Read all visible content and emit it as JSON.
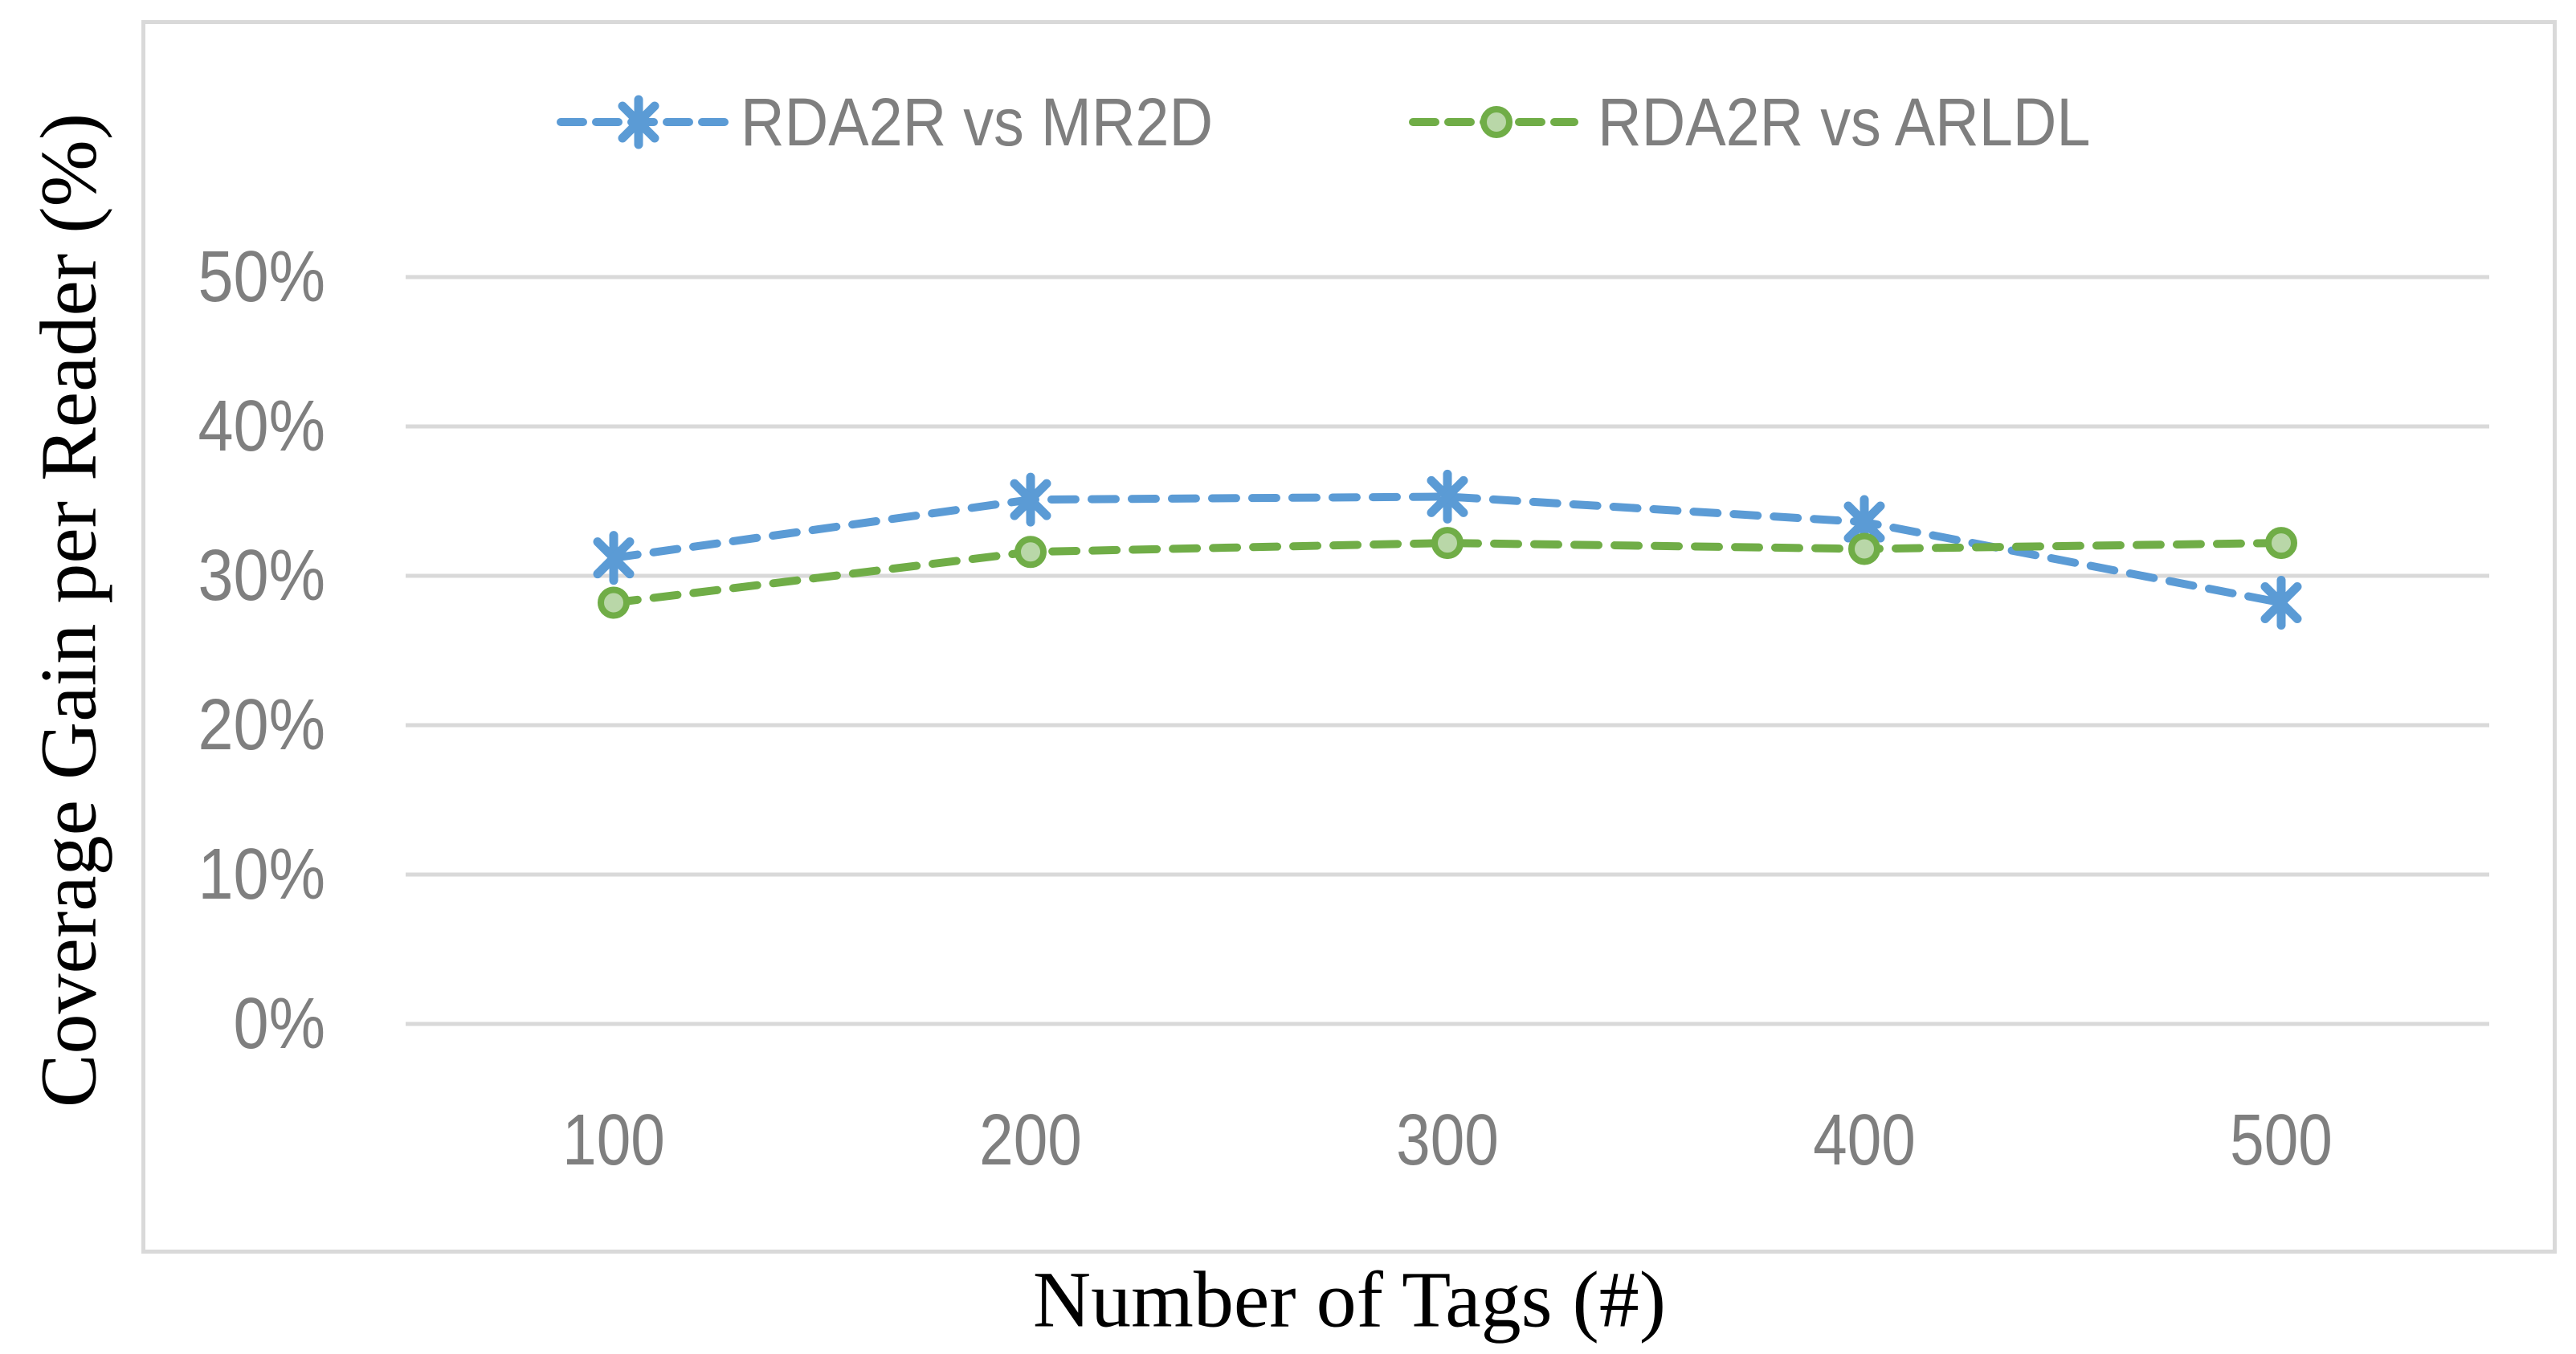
{
  "chart_data": {
    "type": "line",
    "title": "",
    "xlabel": "Number of Tags (#)",
    "ylabel": "Coverage Gain per Reader (%)",
    "categories": [
      "100",
      "200",
      "300",
      "400",
      "500"
    ],
    "series": [
      {
        "name": "RDA2R vs MR2D",
        "values": [
          31.2,
          35.1,
          35.3,
          33.6,
          28.2
        ],
        "color": "#5B9BD5",
        "marker": "asterisk",
        "line_style": "dashed"
      },
      {
        "name": "RDA2R vs ARLDL",
        "values": [
          28.2,
          31.6,
          32.2,
          31.8,
          32.2
        ],
        "color": "#70AD47",
        "marker": "circle",
        "marker_fill": "#B9D7A8",
        "line_style": "dashed"
      }
    ],
    "yticks": [
      "0%",
      "10%",
      "20%",
      "30%",
      "40%",
      "50%"
    ],
    "ytick_values": [
      0,
      10,
      20,
      30,
      40,
      50
    ],
    "ylim": [
      0,
      50
    ],
    "grid": "horizontal",
    "legend_position": "top-center"
  },
  "colors": {
    "gridline": "#d9d9d9",
    "frame_border": "#d9d9d9",
    "tick_text": "#7f7f7f",
    "legend_text": "#7f7f7f",
    "axis_title_text": "#000000",
    "background": "#ffffff"
  }
}
